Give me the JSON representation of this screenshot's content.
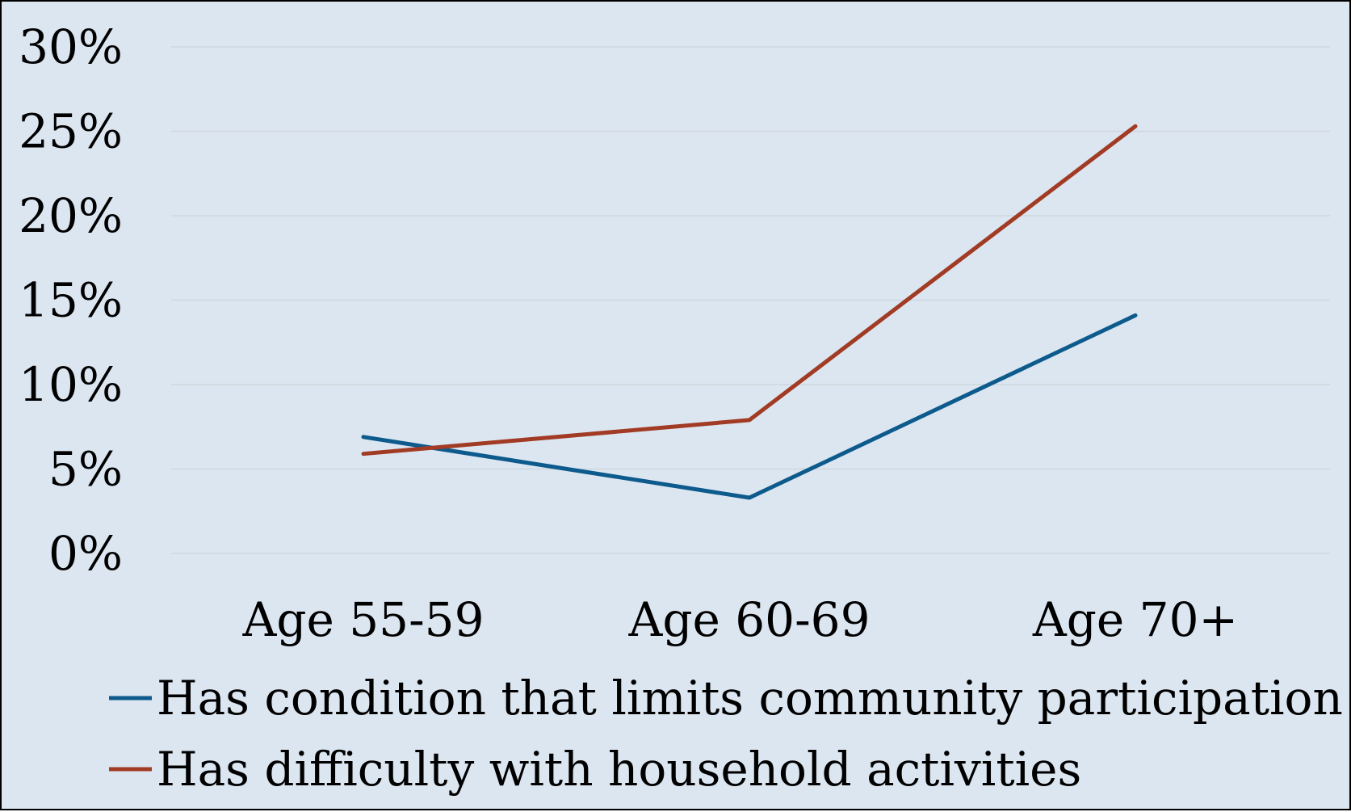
{
  "chart_data": {
    "type": "line",
    "categories": [
      "Age 55-59",
      "Age 60-69",
      "Age 70+"
    ],
    "series": [
      {
        "name": "Has condition that limits community participation",
        "values": [
          6.9,
          3.3,
          14.1
        ],
        "color": "#0d5a8c"
      },
      {
        "name": "Has difficulty with household activities",
        "values": [
          5.9,
          7.9,
          25.3
        ],
        "color": "#a23b24"
      }
    ],
    "ylim": [
      0,
      30
    ],
    "yticks": [
      0,
      5,
      10,
      15,
      20,
      25,
      30
    ],
    "ytick_labels": [
      "0%",
      "5%",
      "10%",
      "15%",
      "20%",
      "25%",
      "30%"
    ],
    "grid": true,
    "grid_color": "#cfd6de",
    "background_color": "#dce6f1",
    "legend_position": "bottom"
  }
}
